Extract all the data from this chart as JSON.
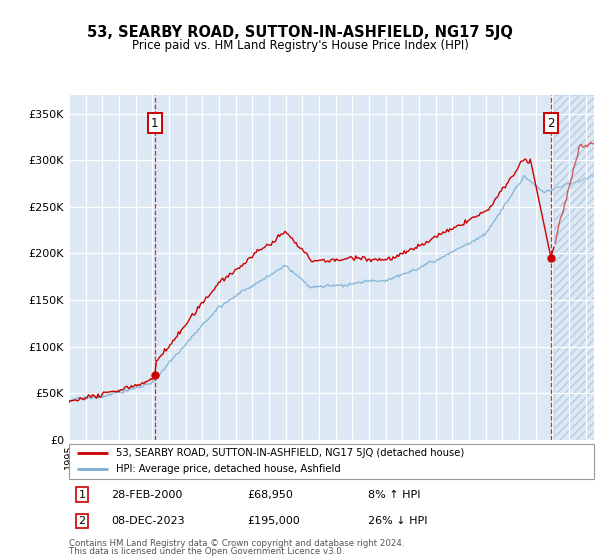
{
  "title": "53, SEARBY ROAD, SUTTON-IN-ASHFIELD, NG17 5JQ",
  "subtitle": "Price paid vs. HM Land Registry's House Price Index (HPI)",
  "ylabel_ticks": [
    "£0",
    "£50K",
    "£100K",
    "£150K",
    "£200K",
    "£250K",
    "£300K",
    "£350K"
  ],
  "ytick_values": [
    0,
    50000,
    100000,
    150000,
    200000,
    250000,
    300000,
    350000
  ],
  "ylim": [
    0,
    370000
  ],
  "xlim_start": 1995.0,
  "xlim_end": 2026.5,
  "hpi_color": "#7bafd4",
  "price_color": "#cc0000",
  "background_color": "#dce9f5",
  "transaction1_date": "28-FEB-2000",
  "transaction1_price": "£68,950",
  "transaction1_pct": "8% ↑ HPI",
  "transaction1_year": 2000.15,
  "transaction1_value": 68950,
  "transaction2_date": "08-DEC-2023",
  "transaction2_price": "£195,000",
  "transaction2_pct": "26% ↓ HPI",
  "transaction2_year": 2023.93,
  "transaction2_value": 195000,
  "legend_label1": "53, SEARBY ROAD, SUTTON-IN-ASHFIELD, NG17 5JQ (detached house)",
  "legend_label2": "HPI: Average price, detached house, Ashfield",
  "footer1": "Contains HM Land Registry data © Crown copyright and database right 2024.",
  "footer2": "This data is licensed under the Open Government Licence v3.0."
}
